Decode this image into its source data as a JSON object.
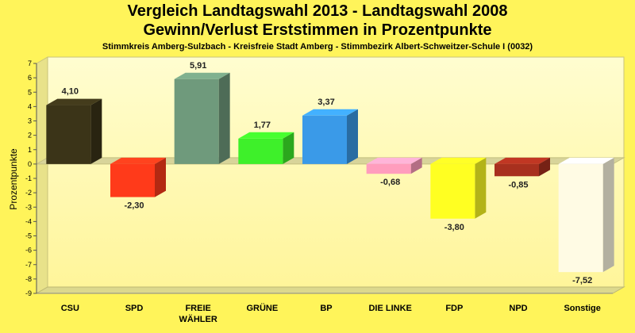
{
  "chart_data": {
    "type": "bar",
    "title": "Vergleich Landtagswahl 2013 - Landtagswahl 2008",
    "subtitle": "Gewinn/Verlust Erststimmen in Prozentpunkte",
    "caption": "Stimmkreis Amberg-Sulzbach - Kreisfreie Stadt Amberg - Stimmbezirk Albert-Schweitzer-Schule I (0032)",
    "ylabel": "Prozentpunkte",
    "xlabel": "",
    "ylim": [
      -9,
      7
    ],
    "yticks": [
      "7",
      "6",
      "5",
      "4",
      "3",
      "2",
      "1",
      "0",
      "-1",
      "-2",
      "-3",
      "-4",
      "-5",
      "-6",
      "-7",
      "-8",
      "-9"
    ],
    "grid": false,
    "categories": [
      "CSU",
      "SPD",
      "FREIE WÄHLER",
      "GRÜNE",
      "BP",
      "DIE LINKE",
      "FDP",
      "NPD",
      "Sonstige"
    ],
    "category_lines": [
      [
        "CSU"
      ],
      [
        "SPD"
      ],
      [
        "FREIE",
        "WÄHLER"
      ],
      [
        "GRÜNE"
      ],
      [
        "BP"
      ],
      [
        "DIE LINKE"
      ],
      [
        "FDP"
      ],
      [
        "NPD"
      ],
      [
        "Sonstige"
      ]
    ],
    "values": [
      4.1,
      -2.3,
      5.91,
      1.77,
      3.37,
      -0.68,
      -3.8,
      -0.85,
      -7.52
    ],
    "value_labels": [
      "4,10",
      "-2,30",
      "5,91",
      "1,77",
      "3,37",
      "-0,68",
      "-3,80",
      "-0,85",
      "-7,52"
    ],
    "colors": [
      "#3b3418",
      "#ff3a1a",
      "#6f9a7c",
      "#3ef02a",
      "#3a9ae8",
      "#ff9dbd",
      "#ffff22",
      "#a8301e",
      "#fffbe4"
    ]
  }
}
